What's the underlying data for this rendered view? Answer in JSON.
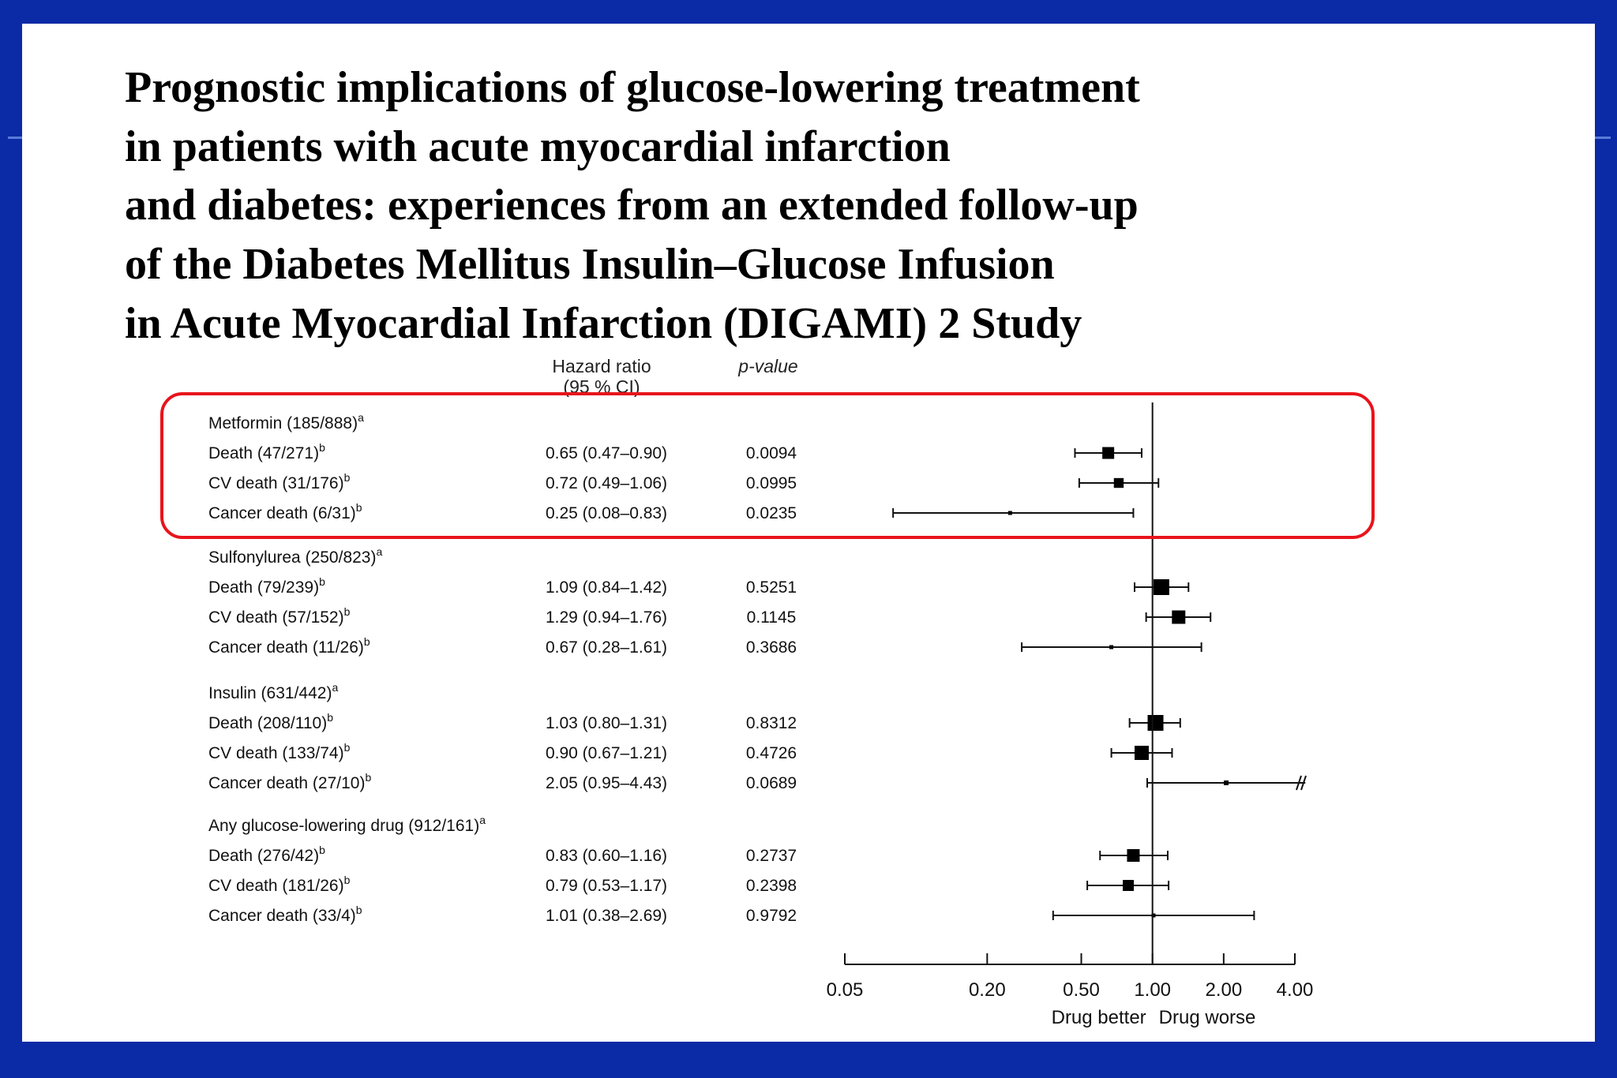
{
  "title_lines": [
    "Prognostic implications of glucose-lowering treatment",
    "in patients with acute myocardial infarction",
    "and diabetes: experiences from an extended follow-up",
    "of the Diabetes Mellitus Insulin–Glucose Infusion",
    "in Acute Myocardial Infarction (DIGAMI) 2 Study"
  ],
  "headers": {
    "hazard_ratio": "Hazard ratio",
    "ci": "(95 % CI)",
    "p_value": "p-value"
  },
  "chart_data": {
    "type": "forest",
    "x_scale": "log",
    "x_ticks": [
      "0.05",
      "0.20",
      "0.50",
      "1.00",
      "2.00",
      "4.00"
    ],
    "x_tick_values": [
      0.05,
      0.2,
      0.5,
      1.0,
      2.0,
      4.0
    ],
    "reference_line": 1.0,
    "x_labels": {
      "left": "Drug better",
      "right": "Drug worse"
    },
    "groups": [
      {
        "label": "Metformin (185/888)",
        "sup": "a",
        "highlighted": true,
        "rows": [
          {
            "label": "Death (47/271)",
            "sup": "b",
            "hr_text": "0.65 (0.47–0.90)",
            "p": "0.0094",
            "hr": 0.65,
            "lo": 0.47,
            "hi": 0.9,
            "weight": 0.75
          },
          {
            "label": "CV death (31/176)",
            "sup": "b",
            "hr_text": "0.72 (0.49–1.06)",
            "p": "0.0995",
            "hr": 0.72,
            "lo": 0.49,
            "hi": 1.06,
            "weight": 0.62
          },
          {
            "label": "Cancer death (6/31)",
            "sup": "b",
            "hr_text": "0.25 (0.08–0.83)",
            "p": "0.0235",
            "hr": 0.25,
            "lo": 0.08,
            "hi": 0.83,
            "weight": 0.15
          }
        ]
      },
      {
        "label": "Sulfonylurea (250/823)",
        "sup": "a",
        "highlighted": false,
        "rows": [
          {
            "label": "Death (79/239)",
            "sup": "b",
            "hr_text": "1.09 (0.84–1.42)",
            "p": "0.5251",
            "hr": 1.09,
            "lo": 0.84,
            "hi": 1.42,
            "weight": 1.0
          },
          {
            "label": "CV death (57/152)",
            "sup": "b",
            "hr_text": "1.29 (0.94–1.76)",
            "p": "0.1145",
            "hr": 1.29,
            "lo": 0.94,
            "hi": 1.76,
            "weight": 0.85
          },
          {
            "label": "Cancer death (11/26)",
            "sup": "b",
            "hr_text": "0.67 (0.28–1.61)",
            "p": "0.3686",
            "hr": 0.67,
            "lo": 0.28,
            "hi": 1.61,
            "weight": 0.22
          }
        ]
      },
      {
        "label": "Insulin (631/442)",
        "sup": "a",
        "highlighted": false,
        "rows": [
          {
            "label": "Death (208/110)",
            "sup": "b",
            "hr_text": "1.03 (0.80–1.31)",
            "p": "0.8312",
            "hr": 1.03,
            "lo": 0.8,
            "hi": 1.31,
            "weight": 1.0
          },
          {
            "label": "CV death (133/74)",
            "sup": "b",
            "hr_text": "0.90 (0.67–1.21)",
            "p": "0.4726",
            "hr": 0.9,
            "lo": 0.67,
            "hi": 1.21,
            "weight": 0.9
          },
          {
            "label": "Cancer death (27/10)",
            "sup": "b",
            "hr_text": "2.05 (0.95–4.43)",
            "p": "0.0689",
            "hr": 2.05,
            "lo": 0.95,
            "hi": 4.43,
            "weight": 0.3
          }
        ]
      },
      {
        "label": "Any glucose-lowering drug (912/161)",
        "sup": "a",
        "highlighted": false,
        "rows": [
          {
            "label": "Death (276/42)",
            "sup": "b",
            "hr_text": "0.83 (0.60–1.16)",
            "p": "0.2737",
            "hr": 0.83,
            "lo": 0.6,
            "hi": 1.16,
            "weight": 0.8
          },
          {
            "label": "CV death (181/26)",
            "sup": "b",
            "hr_text": "0.79 (0.53–1.17)",
            "p": "0.2398",
            "hr": 0.79,
            "lo": 0.53,
            "hi": 1.17,
            "weight": 0.7
          },
          {
            "label": "Cancer death (33/4)",
            "sup": "b",
            "hr_text": "1.01 (0.38–2.69)",
            "p": "0.9792",
            "hr": 1.01,
            "lo": 0.38,
            "hi": 2.69,
            "weight": 0.18
          }
        ]
      }
    ]
  }
}
